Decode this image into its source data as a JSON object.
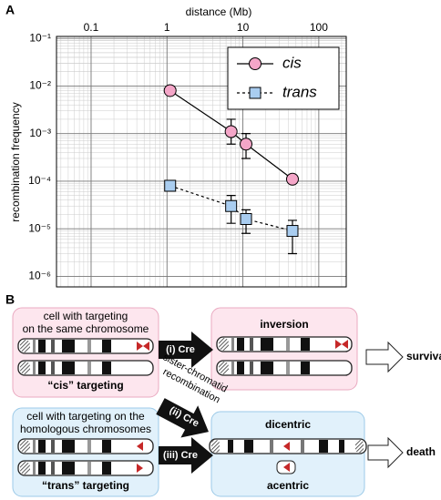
{
  "chart_data": {
    "type": "line",
    "panel_label": "A",
    "x_label": "distance (Mb)",
    "y_label": "recombination frequency",
    "x_log": true,
    "y_log": true,
    "grid": true,
    "minor_grid": true,
    "legend": "upper right",
    "xlim": [
      0.035,
      230
    ],
    "xticks": [
      0.1,
      1,
      10,
      100
    ],
    "ylim": [
      6e-07,
      0.11
    ],
    "yticks": [
      {
        "value": 0.1,
        "label": "10⁻¹"
      },
      {
        "value": 0.01,
        "label": "10⁻²"
      },
      {
        "value": 0.001,
        "label": "10⁻³"
      },
      {
        "value": 0.0001,
        "label": "10⁻⁴"
      },
      {
        "value": 1e-05,
        "label": "10⁻⁵"
      },
      {
        "value": 1e-06,
        "label": "10⁻⁶"
      }
    ],
    "series": [
      {
        "name": "cis",
        "color": "#f4a6c8",
        "marker": "circle",
        "dash": false,
        "x": [
          1.1,
          7,
          11,
          45
        ],
        "values": [
          0.008,
          0.0011,
          0.0006,
          0.00011
        ],
        "error_low": [
          null,
          0.0006,
          0.0003,
          9e-05
        ],
        "error_high": [
          null,
          0.002,
          0.001,
          0.00013
        ]
      },
      {
        "name": "trans",
        "color": "#a9cdf0",
        "marker": "square",
        "dash": true,
        "x": [
          1.1,
          7,
          11,
          45
        ],
        "values": [
          8e-05,
          3e-05,
          1.6e-05,
          9e-06
        ],
        "error_low": [
          null,
          1.3e-05,
          8e-06,
          3e-06
        ],
        "error_high": [
          null,
          5e-05,
          2.5e-05,
          1.5e-05
        ]
      }
    ]
  },
  "diagram": {
    "panel_label": "B",
    "cis_cell": {
      "line1": "cell with targeting",
      "line2": "on the same chromosome",
      "caption": "“cis” targeting"
    },
    "trans_cell": {
      "line1": "cell with targeting on the",
      "line2": "homologous chromosomes",
      "caption": "“trans” targeting"
    },
    "arrow_i": "(i) Cre",
    "arrow_ii": "(ii) Cre",
    "arrow_iii": "(iii) Cre",
    "sister": {
      "line1": "sister-chromatid",
      "line2": "recombination"
    },
    "inversion": "inversion",
    "dicentric": "dicentric",
    "acentric": "acentric",
    "survival": "survival",
    "death": "death"
  }
}
